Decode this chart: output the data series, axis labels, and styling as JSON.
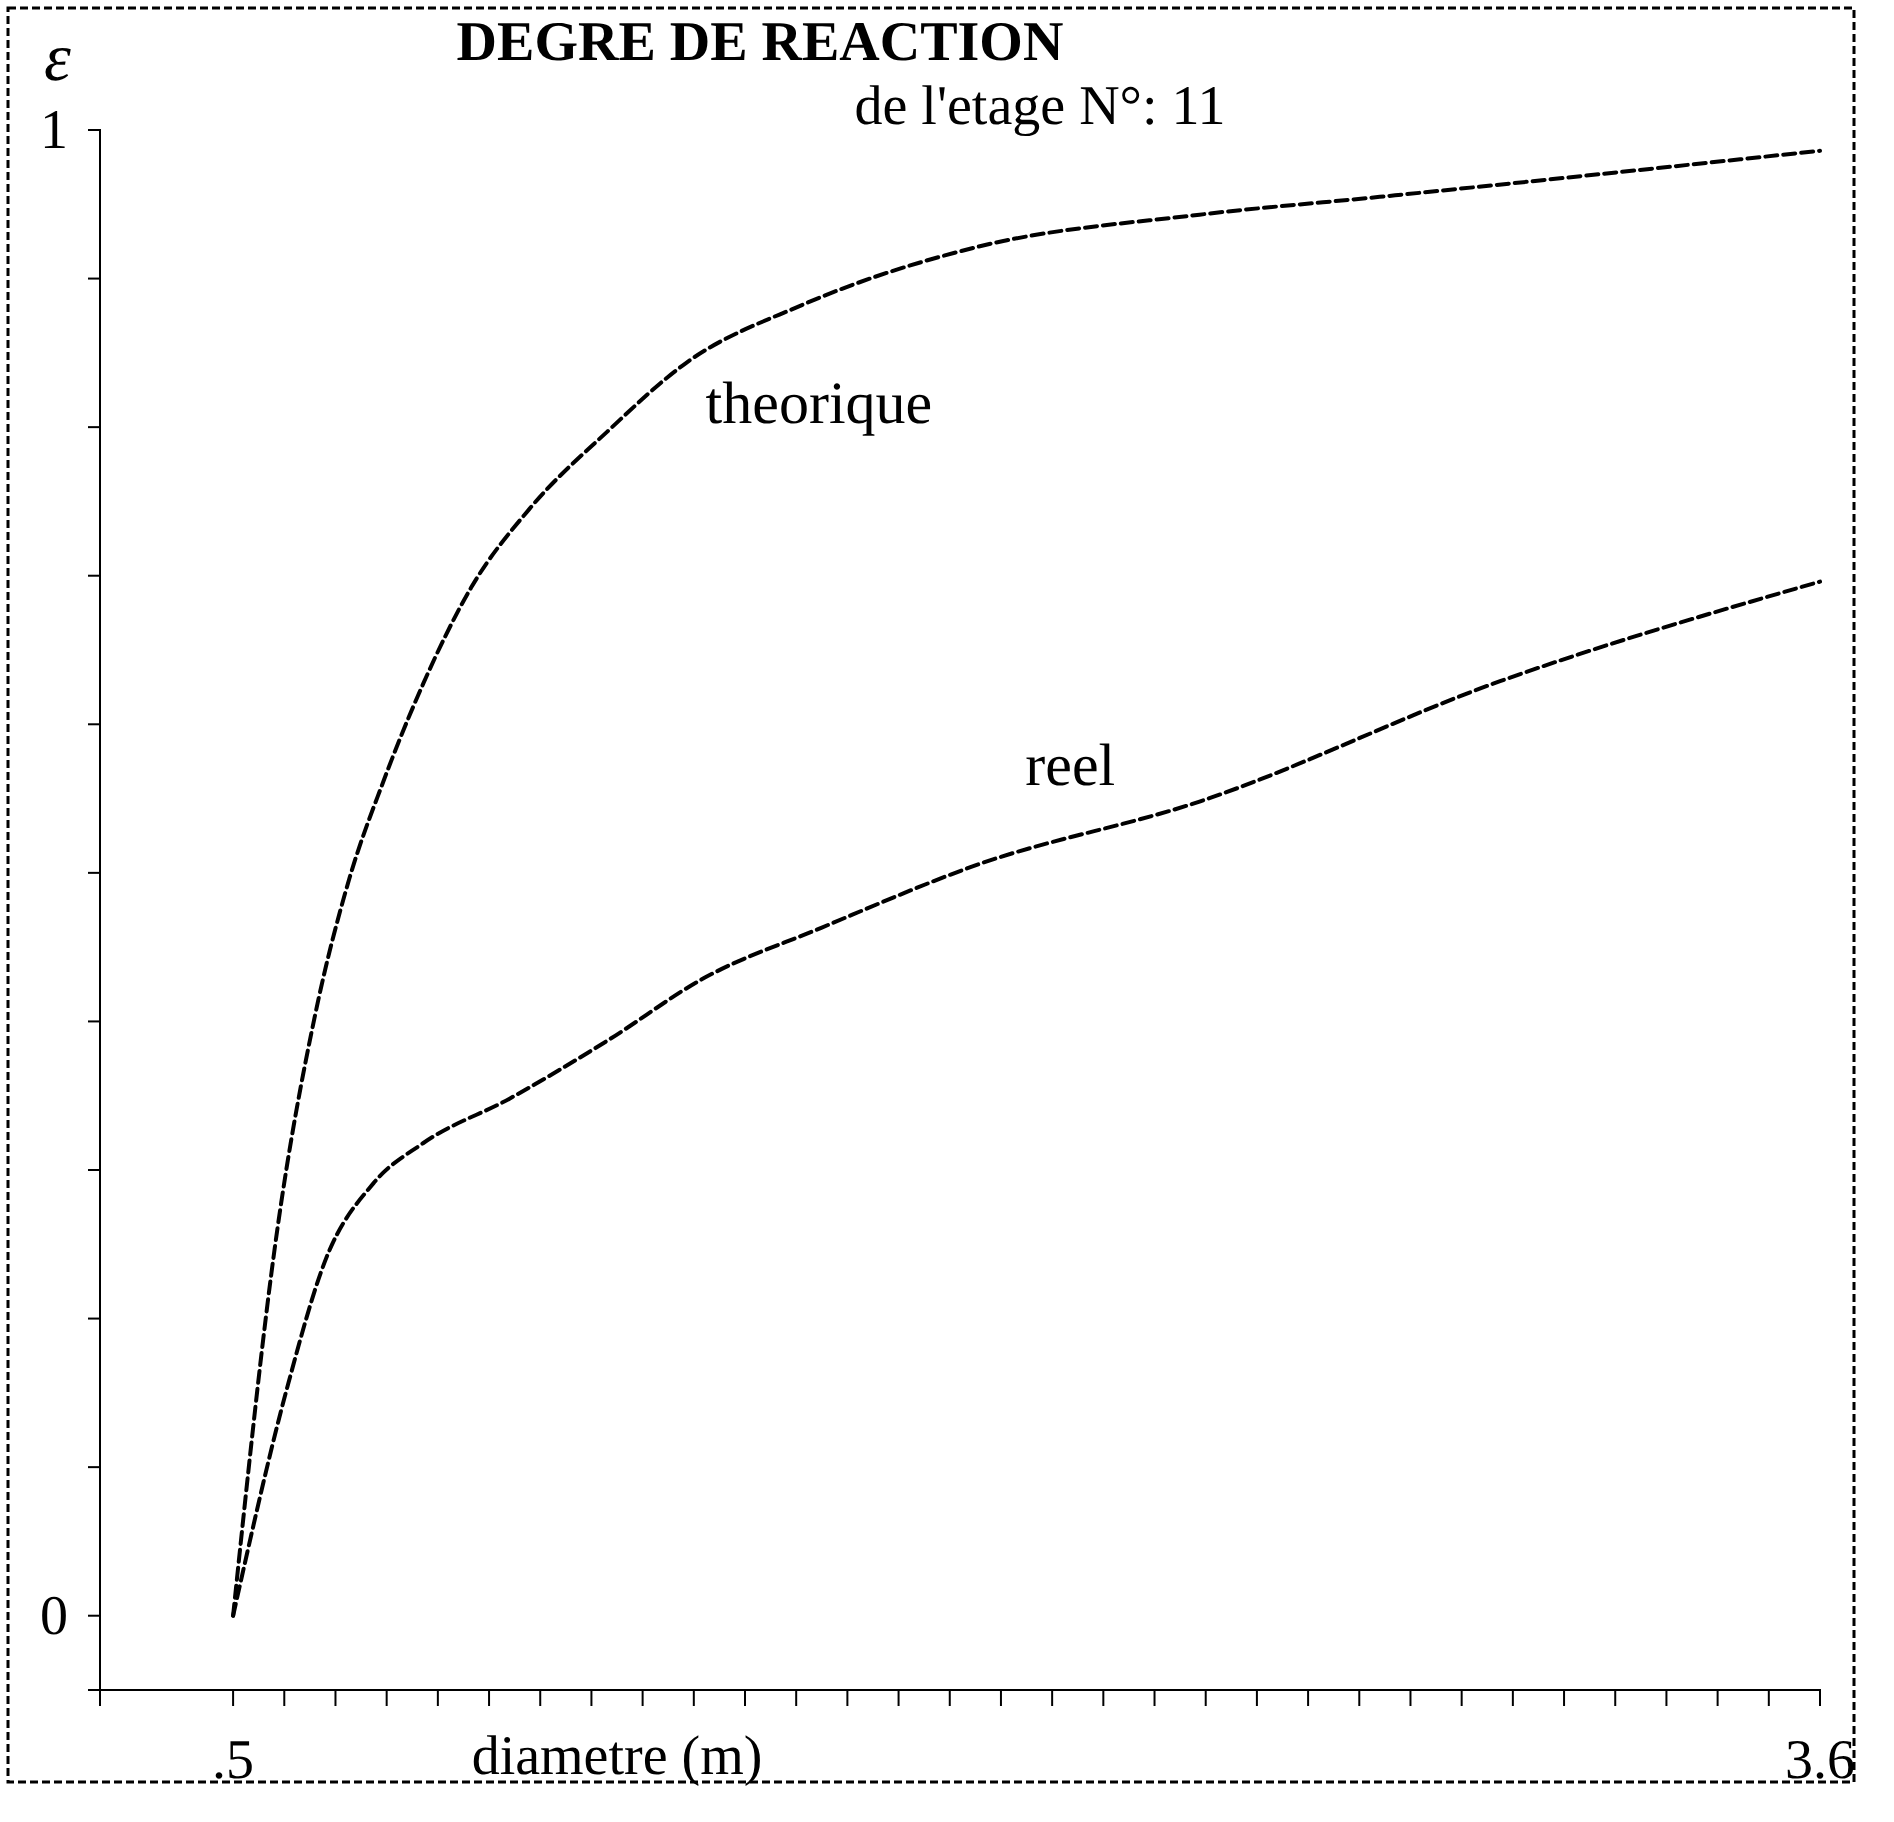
{
  "chart_data": {
    "type": "line",
    "title": "DEGRE DE REACTION",
    "subtitle": "de l'etage N°: 11",
    "xlabel": "diametre (m)",
    "ylabel": "ε",
    "xlim": [
      0.24,
      3.6
    ],
    "ylim": [
      -0.05,
      1.0
    ],
    "xticks": [
      {
        "value": 0.5,
        "label": ".5"
      },
      {
        "value": 0.6,
        "label": null
      },
      {
        "value": 0.7,
        "label": null
      },
      {
        "value": 0.8,
        "label": null
      },
      {
        "value": 0.9,
        "label": null
      },
      {
        "value": 1.0,
        "label": null
      },
      {
        "value": 1.1,
        "label": null
      },
      {
        "value": 1.2,
        "label": null
      },
      {
        "value": 1.3,
        "label": null
      },
      {
        "value": 1.4,
        "label": null
      },
      {
        "value": 1.5,
        "label": null
      },
      {
        "value": 1.6,
        "label": null
      },
      {
        "value": 1.7,
        "label": null
      },
      {
        "value": 1.8,
        "label": null
      },
      {
        "value": 1.9,
        "label": null
      },
      {
        "value": 2.0,
        "label": null
      },
      {
        "value": 2.1,
        "label": null
      },
      {
        "value": 2.2,
        "label": null
      },
      {
        "value": 2.3,
        "label": null
      },
      {
        "value": 2.4,
        "label": null
      },
      {
        "value": 2.5,
        "label": null
      },
      {
        "value": 2.6,
        "label": null
      },
      {
        "value": 2.7,
        "label": null
      },
      {
        "value": 2.8,
        "label": null
      },
      {
        "value": 2.9,
        "label": null
      },
      {
        "value": 3.0,
        "label": null
      },
      {
        "value": 3.1,
        "label": null
      },
      {
        "value": 3.2,
        "label": null
      },
      {
        "value": 3.3,
        "label": null
      },
      {
        "value": 3.4,
        "label": null
      },
      {
        "value": 3.5,
        "label": null
      },
      {
        "value": 3.6,
        "label": "3.6"
      }
    ],
    "yticks": [
      0,
      {
        "value": 0.1,
        "label": null
      },
      {
        "value": 0.2,
        "label": null
      },
      {
        "value": 0.3,
        "label": null
      },
      {
        "value": 0.4,
        "label": null
      },
      {
        "value": 0.5,
        "label": null
      },
      {
        "value": 0.6,
        "label": null
      },
      {
        "value": 0.7,
        "label": null
      },
      {
        "value": 0.8,
        "label": null
      },
      {
        "value": 0.9,
        "label": null
      },
      1
    ],
    "grid": false,
    "line_style": "dashed",
    "marker": "none",
    "series": [
      {
        "name": "theorique",
        "color": "#000000",
        "x": [
          0.5,
          0.586,
          0.66,
          0.727,
          0.793,
          0.871,
          0.965,
          1.079,
          1.231,
          1.384,
          1.61,
          1.95,
          2.388,
          2.74,
          3.6
        ],
        "values": [
          0,
          0.259,
          0.404,
          0.496,
          0.561,
          0.627,
          0.692,
          0.745,
          0.797,
          0.843,
          0.882,
          0.921,
          0.943,
          0.955,
          0.986
        ]
      },
      {
        "name": "reel",
        "color": "#000000",
        "x": [
          0.5,
          0.606,
          0.68,
          0.774,
          0.871,
          1.04,
          1.231,
          1.419,
          1.649,
          1.95,
          2.388,
          2.975,
          3.6
        ],
        "values": [
          0,
          0.154,
          0.239,
          0.291,
          0.318,
          0.348,
          0.387,
          0.429,
          0.463,
          0.505,
          0.548,
          0.629,
          0.696
        ]
      }
    ]
  }
}
